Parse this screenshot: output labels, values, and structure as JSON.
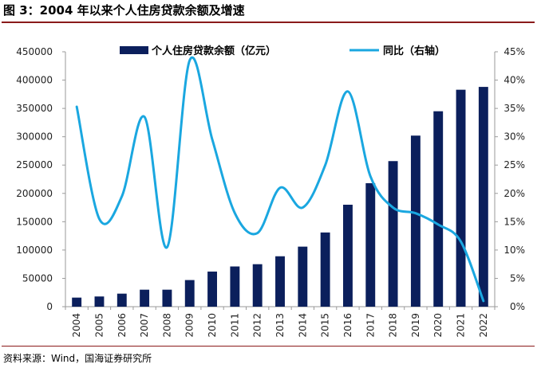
{
  "title": "图 3：2004 年以来个人住房贷款余额及增速",
  "source": "资料来源：Wind，国海证券研究所",
  "colors": {
    "bar": "#0b1f5c",
    "line": "#1aa7e0",
    "rule": "#8a1a1a",
    "axis": "#9a9a9a"
  },
  "chart_data": {
    "type": "bar",
    "categories": [
      "2004",
      "2005",
      "2006",
      "2007",
      "2008",
      "2009",
      "2010",
      "2011",
      "2012",
      "2013",
      "2014",
      "2015",
      "2016",
      "2017",
      "2018",
      "2019",
      "2020",
      "2021",
      "2022"
    ],
    "series": [
      {
        "name": "个人住房贷款余额（亿元）",
        "type": "bar",
        "axis": "left",
        "values": [
          16000,
          18000,
          23000,
          30000,
          30000,
          47000,
          62000,
          71000,
          75000,
          89000,
          106000,
          131000,
          180000,
          218000,
          257000,
          302000,
          345000,
          383000,
          388000
        ]
      },
      {
        "name": "同比（右轴）",
        "type": "line",
        "axis": "right",
        "values": [
          35.3,
          15.5,
          19.5,
          33.5,
          10.5,
          43.5,
          29.5,
          16.5,
          13.0,
          21.0,
          17.5,
          25.0,
          38.0,
          23.0,
          17.5,
          16.5,
          14.5,
          11.5,
          1.0
        ]
      }
    ],
    "y_left": {
      "min": 0,
      "max": 450000,
      "step": 50000,
      "ticks": [
        "0",
        "50000",
        "100000",
        "150000",
        "200000",
        "250000",
        "300000",
        "350000",
        "400000",
        "450000"
      ]
    },
    "y_right": {
      "min": 0,
      "max": 45,
      "step": 5,
      "ticks": [
        "0%",
        "5%",
        "10%",
        "15%",
        "20%",
        "25%",
        "30%",
        "35%",
        "40%",
        "45%"
      ]
    },
    "legend_position": "top",
    "grid": false
  }
}
